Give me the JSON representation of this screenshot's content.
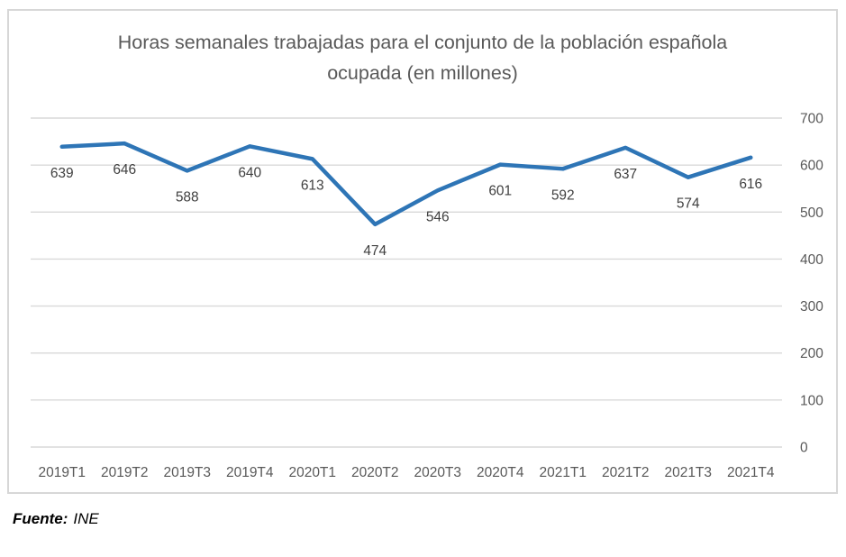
{
  "title": "Horas semanales trabajadas para el conjunto de la población española ocupada (en millones)",
  "source": {
    "label": "Fuente:",
    "value": "INE"
  },
  "colors": {
    "line": "#2E75B6",
    "grid": "#D9D9D9",
    "axis_text": "#595959",
    "data_label": "#404040",
    "border": "#D7D7D7"
  },
  "chart_data": {
    "type": "line",
    "title": "Horas semanales trabajadas para el conjunto de la población española ocupada (en millones)",
    "categories": [
      "2019T1",
      "2019T2",
      "2019T3",
      "2019T4",
      "2020T1",
      "2020T2",
      "2020T3",
      "2020T4",
      "2021T1",
      "2021T2",
      "2021T3",
      "2021T4"
    ],
    "values": [
      639,
      646,
      588,
      640,
      613,
      474,
      546,
      601,
      592,
      637,
      574,
      616
    ],
    "xlabel": "",
    "ylabel": "",
    "ylim": [
      0,
      700
    ],
    "yticks": [
      0,
      100,
      200,
      300,
      400,
      500,
      600,
      700
    ],
    "y_axis_side": "right",
    "grid": true,
    "legend": false,
    "data_labels_position": "below",
    "source_note": "Fuente: INE"
  }
}
